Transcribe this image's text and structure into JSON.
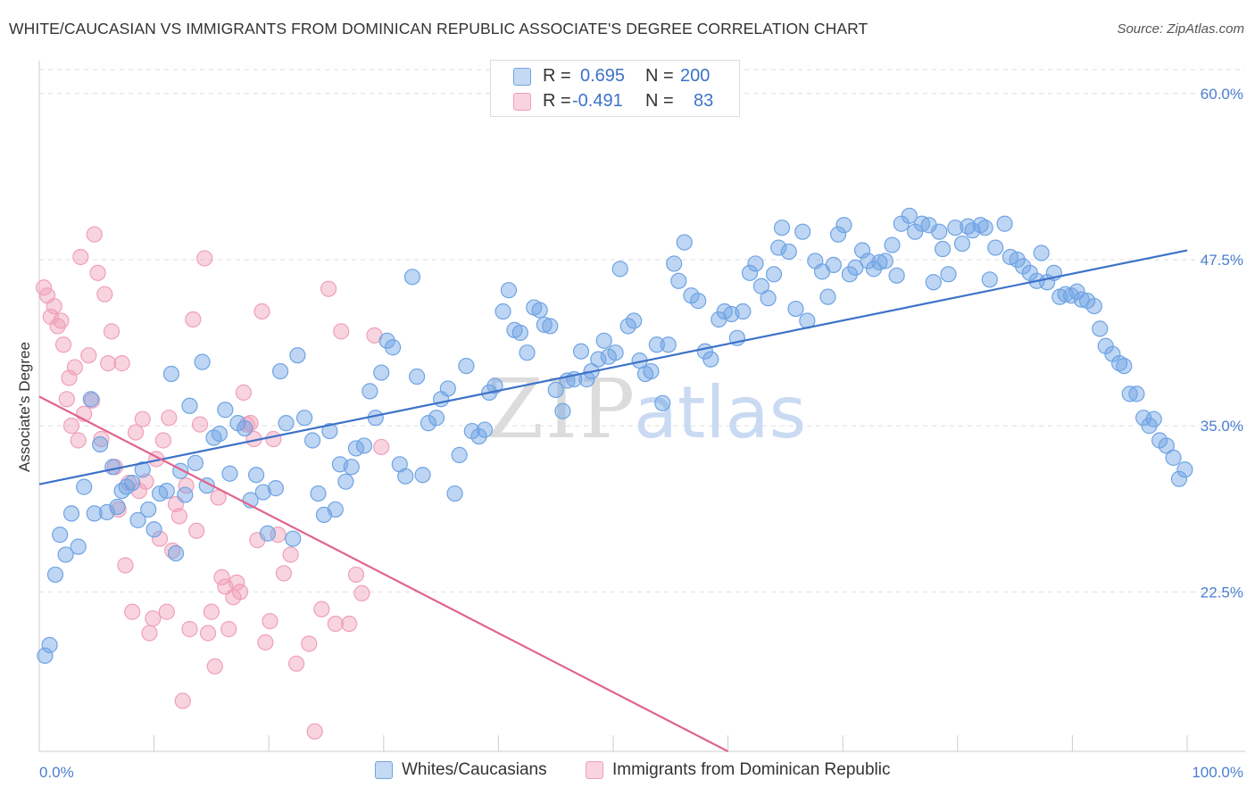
{
  "title": "WHITE/CAUCASIAN VS IMMIGRANTS FROM DOMINICAN REPUBLIC ASSOCIATE'S DEGREE CORRELATION CHART",
  "source": "Source: ZipAtlas.com",
  "watermark": {
    "zip": "ZIP",
    "atlas": "atlas"
  },
  "colors": {
    "blue": "#6fa3e4",
    "blue_line": "#3d72c8",
    "pink": "#f0a0b9",
    "pink_line": "#e0648f",
    "tick_text": "#4a7fd0",
    "grid": "#dddddd"
  },
  "stats": [
    {
      "r_label": "R =",
      "r_value": "0.695",
      "n_label": "N =",
      "n_value": "200"
    },
    {
      "r_label": "R =",
      "r_value": "-0.491",
      "n_label": "N =",
      "n_value": "83"
    }
  ],
  "legend": {
    "blue_label": "Whites/Caucasians",
    "pink_label": "Immigrants from Dominican Republic"
  },
  "chart_data": {
    "type": "scatter",
    "title": "WHITE/CAUCASIAN VS IMMIGRANTS FROM DOMINICAN REPUBLIC ASSOCIATE'S DEGREE CORRELATION CHART",
    "xlabel": "",
    "ylabel": "Associate's Degree",
    "xlim": [
      0,
      100
    ],
    "ylim": [
      10.5,
      62.0
    ],
    "x_tick_labels": [
      "0.0%",
      "100.0%"
    ],
    "y_ticks": [
      22.5,
      35.0,
      47.5,
      60.0
    ],
    "y_tick_labels": [
      "22.5%",
      "35.0%",
      "47.5%",
      "60.0%"
    ],
    "grid": true,
    "legend_position": "bottom",
    "series": [
      {
        "name": "Whites/Caucasians",
        "color": "#6fa3e4",
        "trend": {
          "x": [
            0,
            100
          ],
          "y": [
            30.6,
            48.2
          ]
        },
        "points": [
          [
            0.5,
            17.7
          ],
          [
            0.9,
            18.5
          ],
          [
            1.4,
            23.8
          ],
          [
            1.8,
            26.8
          ],
          [
            2.3,
            25.3
          ],
          [
            2.8,
            28.4
          ],
          [
            3.4,
            25.9
          ],
          [
            3.9,
            30.4
          ],
          [
            4.5,
            37.0
          ],
          [
            4.8,
            28.4
          ],
          [
            5.3,
            33.6
          ],
          [
            5.9,
            28.5
          ],
          [
            6.4,
            31.9
          ],
          [
            6.8,
            28.9
          ],
          [
            7.2,
            30.1
          ],
          [
            7.6,
            30.4
          ],
          [
            8.1,
            30.7
          ],
          [
            8.6,
            27.9
          ],
          [
            9.0,
            31.7
          ],
          [
            9.5,
            28.7
          ],
          [
            10.0,
            27.2
          ],
          [
            10.5,
            29.9
          ],
          [
            11.1,
            30.1
          ],
          [
            11.5,
            38.9
          ],
          [
            11.9,
            25.4
          ],
          [
            12.3,
            31.6
          ],
          [
            12.7,
            29.8
          ],
          [
            13.1,
            36.5
          ],
          [
            13.6,
            32.2
          ],
          [
            14.2,
            39.8
          ],
          [
            14.6,
            30.5
          ],
          [
            15.2,
            34.1
          ],
          [
            15.7,
            34.4
          ],
          [
            16.2,
            36.2
          ],
          [
            16.6,
            31.4
          ],
          [
            17.3,
            35.2
          ],
          [
            17.9,
            34.8
          ],
          [
            18.4,
            29.4
          ],
          [
            18.9,
            31.3
          ],
          [
            19.5,
            30.0
          ],
          [
            19.9,
            26.9
          ],
          [
            20.6,
            30.3
          ],
          [
            21.0,
            39.1
          ],
          [
            21.5,
            35.2
          ],
          [
            22.1,
            26.5
          ],
          [
            22.5,
            40.3
          ],
          [
            23.1,
            35.6
          ],
          [
            23.8,
            33.9
          ],
          [
            24.3,
            29.9
          ],
          [
            24.8,
            28.3
          ],
          [
            25.3,
            34.6
          ],
          [
            25.8,
            28.7
          ],
          [
            26.2,
            32.1
          ],
          [
            26.7,
            30.8
          ],
          [
            27.2,
            31.9
          ],
          [
            27.6,
            33.3
          ],
          [
            28.3,
            33.5
          ],
          [
            28.8,
            37.6
          ],
          [
            29.3,
            35.6
          ],
          [
            29.8,
            39.0
          ],
          [
            30.3,
            41.4
          ],
          [
            30.8,
            40.9
          ],
          [
            31.4,
            32.1
          ],
          [
            31.9,
            31.2
          ],
          [
            32.5,
            46.2
          ],
          [
            32.9,
            38.7
          ],
          [
            33.4,
            31.3
          ],
          [
            33.9,
            35.2
          ],
          [
            34.6,
            35.6
          ],
          [
            35.0,
            37.0
          ],
          [
            35.6,
            37.8
          ],
          [
            36.2,
            29.9
          ],
          [
            36.6,
            32.8
          ],
          [
            37.2,
            39.5
          ],
          [
            37.7,
            34.6
          ],
          [
            38.3,
            34.2
          ],
          [
            38.8,
            34.7
          ],
          [
            39.2,
            37.5
          ],
          [
            39.7,
            38.0
          ],
          [
            40.4,
            43.6
          ],
          [
            40.9,
            45.2
          ],
          [
            41.4,
            42.2
          ],
          [
            41.9,
            42.0
          ],
          [
            42.5,
            40.5
          ],
          [
            43.1,
            43.9
          ],
          [
            43.6,
            43.7
          ],
          [
            44.0,
            42.6
          ],
          [
            44.5,
            42.5
          ],
          [
            45.0,
            37.7
          ],
          [
            45.6,
            36.1
          ],
          [
            46.0,
            38.4
          ],
          [
            46.6,
            38.5
          ],
          [
            47.2,
            40.6
          ],
          [
            47.7,
            38.5
          ],
          [
            48.1,
            39.1
          ],
          [
            48.7,
            40.0
          ],
          [
            49.2,
            41.4
          ],
          [
            49.6,
            40.2
          ],
          [
            50.2,
            40.5
          ],
          [
            50.6,
            46.8
          ],
          [
            51.3,
            42.5
          ],
          [
            51.8,
            42.9
          ],
          [
            52.3,
            39.9
          ],
          [
            52.8,
            38.9
          ],
          [
            53.3,
            39.1
          ],
          [
            53.8,
            41.1
          ],
          [
            54.3,
            36.7
          ],
          [
            54.8,
            41.1
          ],
          [
            55.3,
            47.2
          ],
          [
            55.7,
            45.9
          ],
          [
            56.2,
            48.8
          ],
          [
            56.8,
            44.8
          ],
          [
            57.4,
            44.4
          ],
          [
            58.0,
            40.6
          ],
          [
            58.5,
            40.0
          ],
          [
            59.2,
            43.0
          ],
          [
            59.7,
            43.6
          ],
          [
            60.3,
            43.4
          ],
          [
            60.8,
            41.6
          ],
          [
            61.3,
            43.6
          ],
          [
            61.9,
            46.5
          ],
          [
            62.4,
            47.2
          ],
          [
            62.9,
            45.5
          ],
          [
            63.5,
            44.6
          ],
          [
            64.0,
            46.4
          ],
          [
            64.4,
            48.4
          ],
          [
            64.7,
            49.9
          ],
          [
            65.3,
            48.1
          ],
          [
            65.9,
            43.8
          ],
          [
            66.5,
            49.6
          ],
          [
            66.9,
            42.9
          ],
          [
            67.6,
            47.4
          ],
          [
            68.2,
            46.6
          ],
          [
            68.7,
            44.7
          ],
          [
            69.2,
            47.1
          ],
          [
            69.6,
            49.4
          ],
          [
            70.1,
            50.1
          ],
          [
            70.6,
            46.4
          ],
          [
            71.1,
            46.9
          ],
          [
            71.7,
            48.2
          ],
          [
            72.2,
            47.4
          ],
          [
            72.7,
            46.8
          ],
          [
            73.2,
            47.3
          ],
          [
            73.7,
            47.4
          ],
          [
            74.3,
            48.6
          ],
          [
            74.7,
            46.3
          ],
          [
            75.1,
            50.2
          ],
          [
            75.8,
            50.8
          ],
          [
            76.3,
            49.6
          ],
          [
            76.9,
            50.2
          ],
          [
            77.5,
            50.1
          ],
          [
            77.9,
            45.8
          ],
          [
            78.4,
            49.6
          ],
          [
            78.7,
            48.3
          ],
          [
            79.2,
            46.4
          ],
          [
            79.8,
            49.9
          ],
          [
            80.4,
            48.7
          ],
          [
            80.9,
            50.0
          ],
          [
            81.3,
            49.7
          ],
          [
            82.0,
            50.1
          ],
          [
            82.4,
            49.9
          ],
          [
            82.8,
            46.0
          ],
          [
            83.3,
            48.4
          ],
          [
            84.1,
            50.2
          ],
          [
            84.6,
            47.7
          ],
          [
            85.2,
            47.5
          ],
          [
            85.7,
            47.0
          ],
          [
            86.3,
            46.5
          ],
          [
            86.9,
            45.9
          ],
          [
            87.3,
            48.0
          ],
          [
            87.8,
            45.8
          ],
          [
            88.4,
            46.5
          ],
          [
            88.9,
            44.7
          ],
          [
            89.4,
            44.9
          ],
          [
            89.9,
            44.8
          ],
          [
            90.4,
            45.1
          ],
          [
            90.8,
            44.5
          ],
          [
            91.3,
            44.4
          ],
          [
            91.9,
            44.0
          ],
          [
            92.4,
            42.3
          ],
          [
            92.9,
            41.0
          ],
          [
            93.5,
            40.4
          ],
          [
            94.1,
            39.7
          ],
          [
            94.5,
            39.5
          ],
          [
            95.0,
            37.4
          ],
          [
            95.6,
            37.4
          ],
          [
            96.2,
            35.6
          ],
          [
            96.7,
            35.0
          ],
          [
            97.1,
            35.5
          ],
          [
            97.6,
            33.9
          ],
          [
            98.2,
            33.5
          ],
          [
            98.8,
            32.6
          ],
          [
            99.3,
            31.0
          ],
          [
            99.8,
            31.7
          ]
        ]
      },
      {
        "name": "Immigrants from Dominican Republic",
        "color": "#f0a0b9",
        "trend": {
          "x": [
            0,
            60
          ],
          "y": [
            37.2,
            10.5
          ]
        },
        "points": [
          [
            0.4,
            45.4
          ],
          [
            0.7,
            44.8
          ],
          [
            1.0,
            43.2
          ],
          [
            1.3,
            44.0
          ],
          [
            1.6,
            42.5
          ],
          [
            1.9,
            42.9
          ],
          [
            2.1,
            41.1
          ],
          [
            2.4,
            37.0
          ],
          [
            2.6,
            38.6
          ],
          [
            2.8,
            35.0
          ],
          [
            3.1,
            39.4
          ],
          [
            3.4,
            33.9
          ],
          [
            3.6,
            47.7
          ],
          [
            3.9,
            35.9
          ],
          [
            4.3,
            40.3
          ],
          [
            4.6,
            36.9
          ],
          [
            4.8,
            49.4
          ],
          [
            5.1,
            46.5
          ],
          [
            5.4,
            34.0
          ],
          [
            5.7,
            44.9
          ],
          [
            6.0,
            39.7
          ],
          [
            6.3,
            42.1
          ],
          [
            6.6,
            31.9
          ],
          [
            6.9,
            28.7
          ],
          [
            7.2,
            39.7
          ],
          [
            7.5,
            24.5
          ],
          [
            7.8,
            30.7
          ],
          [
            8.1,
            21.0
          ],
          [
            8.4,
            34.5
          ],
          [
            8.7,
            30.1
          ],
          [
            9.0,
            35.5
          ],
          [
            9.3,
            30.8
          ],
          [
            9.6,
            19.4
          ],
          [
            9.9,
            20.5
          ],
          [
            10.2,
            32.5
          ],
          [
            10.5,
            26.5
          ],
          [
            10.8,
            33.9
          ],
          [
            11.1,
            21.0
          ],
          [
            11.3,
            35.6
          ],
          [
            11.6,
            25.6
          ],
          [
            11.9,
            29.1
          ],
          [
            12.2,
            28.2
          ],
          [
            12.5,
            14.3
          ],
          [
            12.8,
            30.5
          ],
          [
            13.1,
            19.7
          ],
          [
            13.4,
            43.0
          ],
          [
            13.7,
            27.1
          ],
          [
            14.0,
            35.1
          ],
          [
            14.4,
            47.6
          ],
          [
            14.7,
            19.4
          ],
          [
            15.0,
            21.0
          ],
          [
            15.3,
            16.9
          ],
          [
            15.6,
            29.6
          ],
          [
            15.9,
            23.6
          ],
          [
            16.2,
            22.9
          ],
          [
            16.5,
            19.7
          ],
          [
            16.9,
            22.1
          ],
          [
            17.2,
            23.2
          ],
          [
            17.5,
            22.5
          ],
          [
            17.8,
            37.5
          ],
          [
            18.1,
            35.1
          ],
          [
            18.4,
            35.2
          ],
          [
            18.7,
            34.0
          ],
          [
            19.0,
            26.4
          ],
          [
            19.4,
            43.6
          ],
          [
            19.7,
            18.7
          ],
          [
            20.1,
            20.3
          ],
          [
            20.4,
            34.0
          ],
          [
            20.8,
            26.8
          ],
          [
            21.3,
            23.9
          ],
          [
            21.9,
            25.3
          ],
          [
            22.4,
            17.1
          ],
          [
            23.5,
            18.6
          ],
          [
            24.0,
            12.0
          ],
          [
            24.6,
            21.2
          ],
          [
            25.2,
            45.3
          ],
          [
            25.8,
            20.1
          ],
          [
            26.3,
            42.1
          ],
          [
            27.0,
            20.1
          ],
          [
            27.6,
            23.8
          ],
          [
            28.1,
            22.4
          ],
          [
            29.2,
            41.8
          ],
          [
            29.8,
            33.4
          ]
        ]
      }
    ]
  }
}
